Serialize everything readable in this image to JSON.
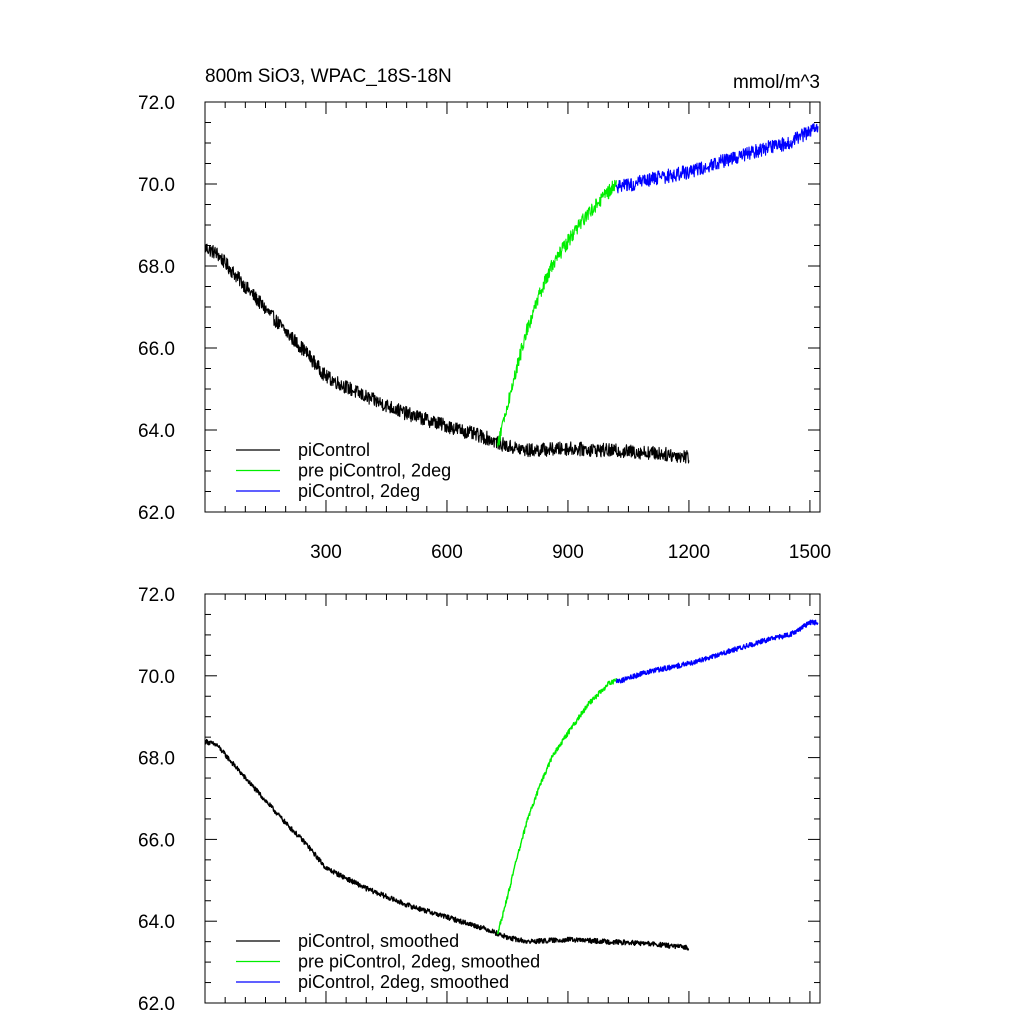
{
  "chart_data": [
    {
      "type": "line",
      "title": "800m SiO3, WPAC_18S-18N",
      "units": "mmol/m^3",
      "xlim": [
        0,
        1525
      ],
      "ylim": [
        62.0,
        72.0
      ],
      "x_ticks": [
        300,
        600,
        900,
        1200,
        1500
      ],
      "x_tick_labels": [
        "300",
        "600",
        "900",
        "1200",
        "1500"
      ],
      "y_ticks": [
        62.0,
        64.0,
        66.0,
        68.0,
        70.0,
        72.0
      ],
      "y_tick_labels": [
        "62.0",
        "64.0",
        "66.0",
        "68.0",
        "70.0",
        "72.0"
      ],
      "noise_level": 0.17,
      "legend_position": "bottom-left",
      "series": [
        {
          "name": "piControl",
          "color": "#000000",
          "x_range": [
            1,
            1200
          ],
          "keypoints": [
            [
              1,
              68.45
            ],
            [
              30,
              68.3
            ],
            [
              100,
              67.5
            ],
            [
              200,
              66.4
            ],
            [
              250,
              65.9
            ],
            [
              300,
              65.3
            ],
            [
              400,
              64.8
            ],
            [
              500,
              64.4
            ],
            [
              600,
              64.1
            ],
            [
              700,
              63.8
            ],
            [
              750,
              63.6
            ],
            [
              800,
              63.5
            ],
            [
              900,
              63.55
            ],
            [
              1000,
              63.5
            ],
            [
              1100,
              63.45
            ],
            [
              1200,
              63.35
            ]
          ]
        },
        {
          "name": "pre piControl, 2deg",
          "color": "#00ee00",
          "x_range": [
            725,
            1020
          ],
          "keypoints": [
            [
              725,
              63.6
            ],
            [
              740,
              64.2
            ],
            [
              770,
              65.4
            ],
            [
              800,
              66.5
            ],
            [
              830,
              67.3
            ],
            [
              860,
              68.0
            ],
            [
              900,
              68.6
            ],
            [
              950,
              69.3
            ],
            [
              1000,
              69.8
            ],
            [
              1020,
              70.0
            ]
          ]
        },
        {
          "name": "piControl, 2deg",
          "color": "#0000ff",
          "x_range": [
            1020,
            1520
          ],
          "keypoints": [
            [
              1020,
              69.9
            ],
            [
              1100,
              70.1
            ],
            [
              1200,
              70.3
            ],
            [
              1300,
              70.6
            ],
            [
              1400,
              70.9
            ],
            [
              1450,
              71.0
            ],
            [
              1500,
              71.3
            ],
            [
              1520,
              71.35
            ]
          ]
        }
      ]
    },
    {
      "type": "line",
      "xlim": [
        0,
        1525
      ],
      "ylim": [
        62.0,
        72.0
      ],
      "x_ticks": [
        300,
        600,
        900,
        1200,
        1500
      ],
      "y_ticks": [
        62.0,
        64.0,
        66.0,
        68.0,
        70.0,
        72.0
      ],
      "y_tick_labels": [
        "62.0",
        "64.0",
        "66.0",
        "68.0",
        "70.0",
        "72.0"
      ],
      "noise_level": 0.06,
      "legend_position": "bottom-left",
      "series": [
        {
          "name": "piControl, smoothed",
          "color": "#000000",
          "x_range": [
            1,
            1200
          ],
          "keypoints": [
            [
              1,
              68.4
            ],
            [
              30,
              68.3
            ],
            [
              100,
              67.5
            ],
            [
              200,
              66.4
            ],
            [
              250,
              65.9
            ],
            [
              300,
              65.3
            ],
            [
              400,
              64.8
            ],
            [
              500,
              64.4
            ],
            [
              600,
              64.1
            ],
            [
              700,
              63.8
            ],
            [
              750,
              63.6
            ],
            [
              800,
              63.5
            ],
            [
              900,
              63.55
            ],
            [
              1000,
              63.5
            ],
            [
              1100,
              63.45
            ],
            [
              1200,
              63.35
            ]
          ]
        },
        {
          "name": "pre piControl, 2deg, smoothed",
          "color": "#00ee00",
          "x_range": [
            725,
            1020
          ],
          "keypoints": [
            [
              725,
              63.7
            ],
            [
              740,
              64.2
            ],
            [
              770,
              65.4
            ],
            [
              800,
              66.5
            ],
            [
              830,
              67.3
            ],
            [
              860,
              68.0
            ],
            [
              900,
              68.6
            ],
            [
              950,
              69.3
            ],
            [
              1000,
              69.8
            ],
            [
              1020,
              69.9
            ]
          ]
        },
        {
          "name": "piControl, 2deg, smoothed",
          "color": "#0000ff",
          "x_range": [
            1020,
            1520
          ],
          "keypoints": [
            [
              1020,
              69.85
            ],
            [
              1100,
              70.1
            ],
            [
              1200,
              70.3
            ],
            [
              1300,
              70.6
            ],
            [
              1400,
              70.9
            ],
            [
              1450,
              71.0
            ],
            [
              1500,
              71.3
            ],
            [
              1520,
              71.3
            ]
          ]
        }
      ]
    }
  ]
}
